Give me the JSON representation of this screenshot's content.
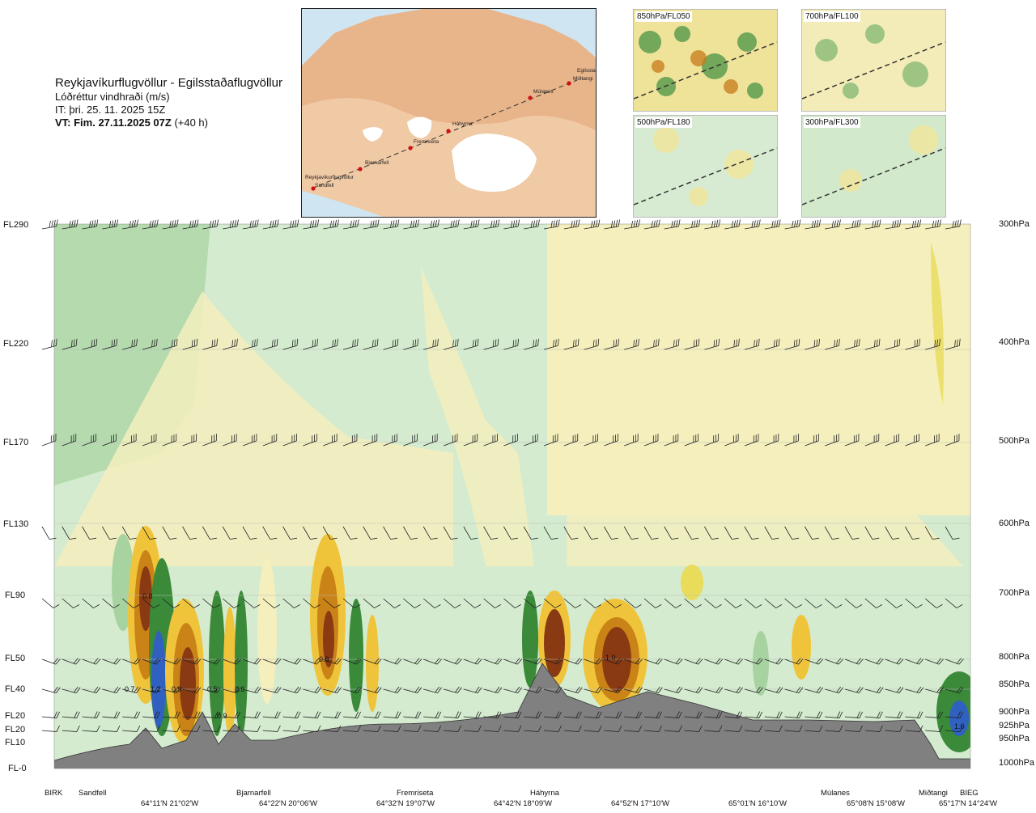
{
  "title": {
    "route": "Reykjavíkurflugvöllur - Egilsstaðaflugvöllur",
    "variable": "Lóðréttur vindhraði (m/s)",
    "it": "IT: þri. 25. 11. 2025 15Z",
    "vt_bold": "VT: Fim. 27.11.2025 07Z",
    "vt_offset": "(+40 h)"
  },
  "map": {
    "waypoints": [
      "Reykjavíkurflugvöllur",
      "Sandfell",
      "Bjarnarfell",
      "Fremriseta",
      "Háhyrna",
      "Múlanes",
      "Miðtangi",
      "Egilsstaðir"
    ]
  },
  "mini_maps": [
    {
      "label": "850hPa/FL050"
    },
    {
      "label": "700hPa/FL100"
    },
    {
      "label": "500hPa/FL180"
    },
    {
      "label": "300hPa/FL300"
    }
  ],
  "colors": {
    "down_strong": "#3a8a3a",
    "down": "#a9d6a4",
    "down_weak": "#cfe8ca",
    "up_weak": "#f6efb5",
    "up": "#f0c43a",
    "up_mid": "#c98316",
    "up_strong": "#8a3a12",
    "terrain": "#777777",
    "max_down": "#3060c0"
  },
  "chart_data": {
    "type": "heatmap",
    "title": "Lóðréttur vindhraði (m/s)",
    "flight_levels": [
      {
        "label": "FL290",
        "hpa": "300hPa"
      },
      {
        "label": "FL220",
        "hpa": "400hPa"
      },
      {
        "label": "FL170",
        "hpa": "500hPa"
      },
      {
        "label": "FL130",
        "hpa": "600hPa"
      },
      {
        "label": "FL90",
        "hpa": "700hPa"
      },
      {
        "label": "FL50",
        "hpa": "800hPa"
      },
      {
        "label": "FL40",
        "hpa": "850hPa"
      },
      {
        "label": "FL20",
        "hpa": "900hPa"
      },
      {
        "label": "FL20",
        "hpa": "925hPa"
      },
      {
        "label": "FL10",
        "hpa": "950hPa"
      },
      {
        "label": "FL-0",
        "hpa": "1000hPa"
      }
    ],
    "locations": [
      "BIRK",
      "Sandfell",
      "Bjarnarfell",
      "Fremriseta",
      "Háhyrna",
      "Múlanes",
      "Miðtangi",
      "BIEG"
    ],
    "coordinates": [
      "64°11'N 21°02'W",
      "64°22'N 20°06'W",
      "64°32'N 19°07'W",
      "64°42'N 18°09'W",
      "64°52'N 17°10'W",
      "65°01'N 16°10'W",
      "65°08'N 15°08'W",
      "65°17'N 14°24'W"
    ],
    "annotations": [
      "0.7",
      "1.2",
      "0.9",
      "0.5",
      "0.6",
      "0.9",
      "0.8",
      "0.8",
      "1.0",
      "1.0"
    ],
    "color_scale": [
      "down_strong",
      "down",
      "down_weak",
      "up_weak",
      "up",
      "up_mid",
      "up_strong"
    ]
  }
}
